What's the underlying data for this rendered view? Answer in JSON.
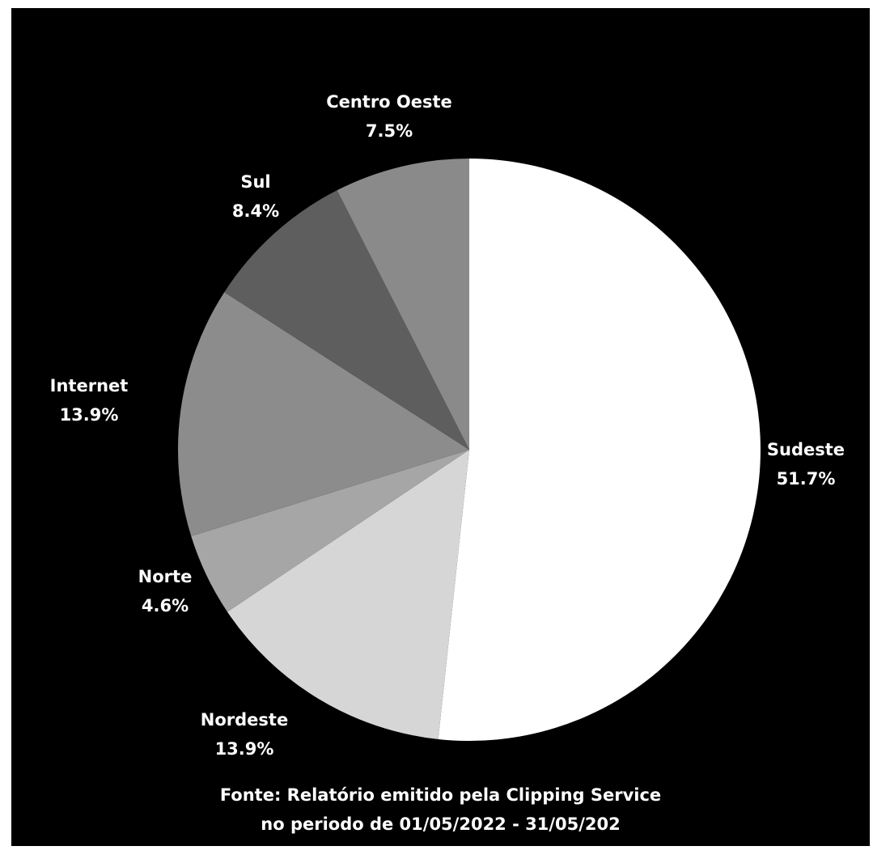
{
  "chart_data": {
    "type": "pie",
    "slices": [
      {
        "label": "Sudeste",
        "value": 51.7,
        "display": "51.7%",
        "color": "#ffffff"
      },
      {
        "label": "Nordeste",
        "value": 13.9,
        "display": "13.9%",
        "color": "#d6d6d6"
      },
      {
        "label": "Norte",
        "value": 4.6,
        "display": "4.6%",
        "color": "#a6a6a6"
      },
      {
        "label": "Internet",
        "value": 13.9,
        "display": "13.9%",
        "color": "#8c8c8c"
      },
      {
        "label": "Sul",
        "value": 8.4,
        "display": "8.4%",
        "color": "#5e5e5e"
      },
      {
        "label": "Centro Oeste",
        "value": 7.5,
        "display": "7.5%",
        "color": "#8a8a8a"
      }
    ],
    "start_angle": "top, clockwise",
    "source_line1": "Fonte: Relatório emitido pela Clipping Service",
    "source_line2": "no periodo de 01/05/2022 - 31/05/202"
  },
  "colors": {
    "background": "#000000",
    "text": "#ffffff"
  }
}
